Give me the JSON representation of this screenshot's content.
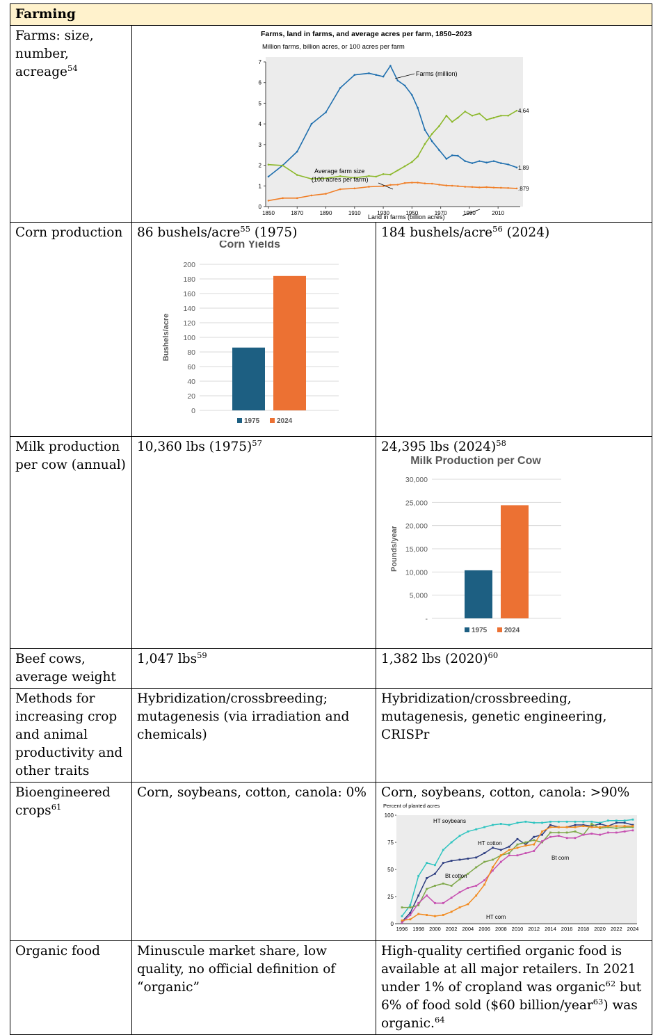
{
  "section_title": "Farming",
  "rows": {
    "farms": {
      "label": "Farms: size, number, acreage",
      "label_fn": "54",
      "chart_data": {
        "type": "line",
        "title": "Farms, land in farms, and average acres per farm, 1850–2023",
        "subtitle": "Million farms, billion acres, or 100 acres per farm",
        "xlim": [
          1850,
          2023
        ],
        "ylim": [
          0,
          7
        ],
        "x_ticks": [
          "1850",
          "1870",
          "1890",
          "1910",
          "1930",
          "1950",
          "1970",
          "1990",
          "2010"
        ],
        "y_ticks": [
          "0",
          "1",
          "2",
          "3",
          "4",
          "5",
          "6",
          "7"
        ],
        "series": [
          {
            "name": "Farms (million)",
            "color": "#1f6fae",
            "end_label": "1.89",
            "x": [
              1850,
              1860,
              1870,
              1880,
              1890,
              1900,
              1910,
              1920,
              1925,
              1930,
              1935,
              1940,
              1945,
              1950,
              1954,
              1959,
              1964,
              1969,
              1974,
              1978,
              1982,
              1987,
              1992,
              1997,
              2002,
              2007,
              2012,
              2017,
              2023
            ],
            "y": [
              1.45,
              2.0,
              2.66,
              4.0,
              4.56,
              5.74,
              6.37,
              6.45,
              6.37,
              6.29,
              6.81,
              6.1,
              5.86,
              5.4,
              4.78,
              3.71,
              3.16,
              2.73,
              2.31,
              2.48,
              2.46,
              2.2,
              2.1,
              2.2,
              2.13,
              2.2,
              2.1,
              2.04,
              1.89
            ]
          },
          {
            "name": "Average farm size (100 acres per farm)",
            "color": "#8cb82b",
            "end_label": "4.64",
            "x": [
              1850,
              1860,
              1870,
              1880,
              1890,
              1900,
              1910,
              1920,
              1925,
              1930,
              1935,
              1940,
              1945,
              1950,
              1954,
              1959,
              1964,
              1969,
              1974,
              1978,
              1982,
              1987,
              1992,
              1997,
              2002,
              2007,
              2012,
              2017,
              2023
            ],
            "y": [
              2.03,
              1.99,
              1.53,
              1.34,
              1.37,
              1.47,
              1.39,
              1.48,
              1.45,
              1.57,
              1.55,
              1.75,
              1.95,
              2.16,
              2.42,
              3.03,
              3.52,
              3.9,
              4.4,
              4.1,
              4.3,
              4.6,
              4.4,
              4.5,
              4.2,
              4.3,
              4.4,
              4.4,
              4.64
            ]
          },
          {
            "name": "Land in farms (billion acres)",
            "color": "#f07e26",
            "end_label": ".879",
            "x": [
              1850,
              1860,
              1870,
              1880,
              1890,
              1900,
              1910,
              1920,
              1930,
              1935,
              1940,
              1945,
              1950,
              1954,
              1959,
              1964,
              1969,
              1974,
              1978,
              1982,
              1987,
              1992,
              1997,
              2002,
              2007,
              2012,
              2017,
              2023
            ],
            "y": [
              0.29,
              0.41,
              0.41,
              0.54,
              0.62,
              0.84,
              0.88,
              0.96,
              0.99,
              1.05,
              1.06,
              1.14,
              1.16,
              1.16,
              1.12,
              1.11,
              1.06,
              1.02,
              1.01,
              0.99,
              0.96,
              0.95,
              0.93,
              0.94,
              0.92,
              0.91,
              0.9,
              0.879
            ]
          }
        ]
      }
    },
    "corn": {
      "label": "Corn production",
      "old_value": "86 bushels/acre",
      "old_fn": "55",
      "old_year": "(1975)",
      "new_value": "184 bushels/acre",
      "new_fn": "56",
      "new_year": "(2024)",
      "chart_data": {
        "type": "bar",
        "title": "Corn Yields",
        "ylabel": "Bushels/acre",
        "categories": [
          "1975",
          "2024"
        ],
        "values": [
          86,
          184
        ],
        "colors": [
          "#1d5f82",
          "#ec7133"
        ],
        "ylim": [
          0,
          200
        ],
        "y_ticks": [
          "0",
          "20",
          "40",
          "60",
          "80",
          "100",
          "120",
          "140",
          "160",
          "180",
          "200"
        ]
      }
    },
    "milk": {
      "label": "Milk production per cow (annual)",
      "old_value": "10,360 lbs (1975)",
      "old_fn": "57",
      "new_value": "24,395 lbs (2024)",
      "new_fn": "58",
      "chart_data": {
        "type": "bar",
        "title": "Milk Production per Cow",
        "ylabel": "Pounds/year",
        "categories": [
          "1975",
          "2024"
        ],
        "values": [
          10360,
          24395
        ],
        "colors": [
          "#1d5f82",
          "#ec7133"
        ],
        "ylim": [
          0,
          30000
        ],
        "y_ticks": [
          "-",
          "5,000",
          "10,000",
          "15,000",
          "20,000",
          "25,000",
          "30,000"
        ]
      }
    },
    "beef": {
      "label": "Beef cows, average weight",
      "old_value": "1,047 lbs",
      "old_fn": "59",
      "new_value": "1,382 lbs (2020)",
      "new_fn": "60"
    },
    "methods": {
      "label": "Methods for increasing crop and animal productivity and other traits",
      "old_value": "Hybridization/crossbreeding; mutagenesis (via irradiation and chemicals)",
      "new_value": "Hybridization/crossbreeding, mutagenesis, genetic engineering, CRISPr"
    },
    "bio": {
      "label": "Bioengineered crops",
      "label_fn": "61",
      "old_value": "Corn, soybeans, cotton, canola: 0%",
      "new_value": "Corn, soybeans, cotton, canola: >90%",
      "chart_data": {
        "type": "line",
        "ylabel": "Percent of planted acres",
        "xlim": [
          1996,
          2024
        ],
        "ylim": [
          0,
          100
        ],
        "x_ticks": [
          "1996",
          "1998",
          "2000",
          "2002",
          "2004",
          "2006",
          "2008",
          "2010",
          "2012",
          "2014",
          "2016",
          "2018",
          "2020",
          "2022",
          "2024"
        ],
        "y_ticks": [
          "0",
          "25",
          "50",
          "75",
          "100"
        ],
        "series": [
          {
            "name": "HT soybeans",
            "color": "#2fc4c0",
            "x": [
              1996,
              1997,
              1998,
              1999,
              2000,
              2001,
              2002,
              2003,
              2004,
              2005,
              2006,
              2007,
              2008,
              2009,
              2010,
              2011,
              2012,
              2013,
              2014,
              2015,
              2016,
              2017,
              2018,
              2019,
              2020,
              2021,
              2022,
              2023,
              2024
            ],
            "y": [
              7,
              17,
              44,
              56,
              54,
              68,
              75,
              81,
              85,
              87,
              89,
              91,
              92,
              91,
              93,
              94,
              93,
              93,
              94,
              94,
              94,
              94,
              94,
              94,
              93,
              95,
              95,
              95,
              96
            ]
          },
          {
            "name": "HT cotton",
            "color": "#2e3e80",
            "x": [
              1996,
              1997,
              1998,
              1999,
              2000,
              2001,
              2002,
              2003,
              2004,
              2005,
              2006,
              2007,
              2008,
              2009,
              2010,
              2011,
              2012,
              2013,
              2014,
              2015,
              2016,
              2017,
              2018,
              2019,
              2020,
              2021,
              2022,
              2023,
              2024
            ],
            "y": [
              2,
              10,
              26,
              42,
              46,
              56,
              58,
              59,
              60,
              61,
              65,
              70,
              68,
              71,
              78,
              73,
              80,
              82,
              91,
              89,
              89,
              91,
              91,
              90,
              92,
              90,
              93,
              93,
              91
            ]
          },
          {
            "name": "Bt cotton",
            "color": "#7fa84a",
            "x": [
              1996,
              1997,
              1998,
              1999,
              2000,
              2001,
              2002,
              2003,
              2004,
              2005,
              2006,
              2007,
              2008,
              2009,
              2010,
              2011,
              2012,
              2013,
              2014,
              2015,
              2016,
              2017,
              2018,
              2019,
              2020,
              2021,
              2022,
              2023,
              2024
            ],
            "y": [
              15,
              15,
              17,
              32,
              35,
              37,
              35,
              41,
              46,
              52,
              57,
              59,
              63,
              65,
              73,
              75,
              77,
              75,
              84,
              84,
              84,
              85,
              82,
              92,
              88,
              89,
              88,
              89,
              89
            ]
          },
          {
            "name": "Bt corn",
            "color": "#c64fb0",
            "x": [
              1996,
              1997,
              1998,
              1999,
              2000,
              2001,
              2002,
              2003,
              2004,
              2005,
              2006,
              2007,
              2008,
              2009,
              2010,
              2011,
              2012,
              2013,
              2014,
              2015,
              2016,
              2017,
              2018,
              2019,
              2020,
              2021,
              2022,
              2023,
              2024
            ],
            "y": [
              1,
              8,
              19,
              26,
              19,
              19,
              24,
              29,
              33,
              35,
              40,
              49,
              57,
              63,
              63,
              65,
              67,
              76,
              80,
              81,
              79,
              79,
              82,
              83,
              82,
              84,
              84,
              85,
              86
            ]
          },
          {
            "name": "HT corn",
            "color": "#f28a1e",
            "x": [
              1996,
              1997,
              1998,
              1999,
              2000,
              2001,
              2002,
              2003,
              2004,
              2005,
              2006,
              2007,
              2008,
              2009,
              2010,
              2011,
              2012,
              2013,
              2014,
              2015,
              2016,
              2017,
              2018,
              2019,
              2020,
              2021,
              2022,
              2023,
              2024
            ],
            "y": [
              3,
              4,
              9,
              8,
              7,
              8,
              11,
              15,
              18,
              26,
              36,
              52,
              63,
              68,
              70,
              72,
              73,
              85,
              89,
              89,
              89,
              89,
              90,
              89,
              89,
              90,
              90,
              90,
              90
            ]
          }
        ]
      }
    },
    "organic": {
      "label": "Organic food",
      "old_value": "Minuscule market share, low quality, no official definition of “organic”",
      "new_part1": "High-quality certified organic food is available at all major retailers. In 2021 under 1% of cropland was organic",
      "new_fn1": "62",
      "new_part2": " but 6% of food sold ($60 billion/year",
      "new_fn2": "63",
      "new_part3": ") was organic.",
      "new_fn3": "64"
    }
  }
}
